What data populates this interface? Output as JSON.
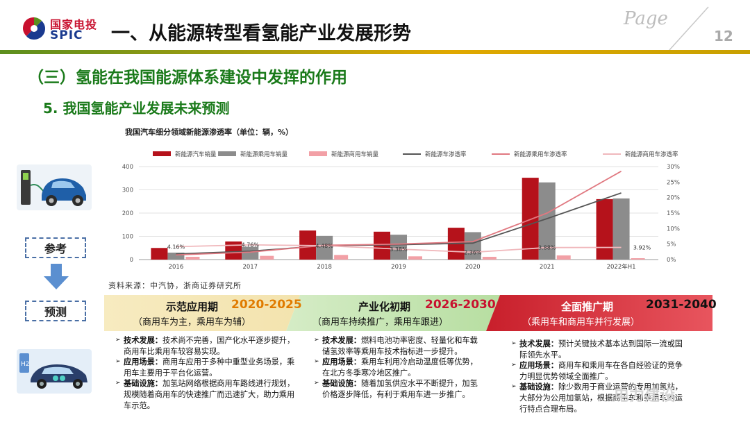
{
  "header": {
    "logo_cn": "国家电投",
    "logo_en": "SPIC",
    "title": "一、从能源转型看氢能产业发展形势",
    "page_label": "Page",
    "page_number": "12"
  },
  "section_title": "（三）氢能在我国能源体系建设中发挥的作用",
  "sub_title": "5. 我国氢能产业发展未来预测",
  "side": {
    "ref_label": "参考",
    "forecast_label": "预测"
  },
  "chart_data": {
    "type": "bar",
    "title": "我国汽车细分领域新能源渗透率（单位：辆，%）",
    "categories": [
      "2016",
      "2017",
      "2018",
      "2019",
      "2020",
      "2021",
      "2022年H1"
    ],
    "series": [
      {
        "name": "新能源汽车销量",
        "type": "bar",
        "color": "#b5121b",
        "values": [
          50,
          78,
          125,
          120,
          137,
          352,
          260
        ]
      },
      {
        "name": "新能源乘用车销量",
        "type": "bar",
        "color": "#8c8c8c",
        "values": [
          30,
          55,
          102,
          107,
          118,
          332,
          263
        ]
      },
      {
        "name": "新能源商用车销量",
        "type": "bar",
        "color": "#f2a0a6",
        "values": [
          12,
          16,
          20,
          14,
          12,
          18,
          6
        ]
      },
      {
        "name": "新能源车渗透率",
        "type": "line",
        "axis": "right",
        "color": "#555555",
        "values": [
          1.8,
          2.7,
          4.5,
          4.8,
          5.3,
          13.2,
          21.5
        ]
      },
      {
        "name": "新能源乘用车渗透率",
        "type": "line",
        "axis": "right",
        "color": "#e07880",
        "values": [
          1.5,
          2.4,
          4.6,
          5.0,
          5.8,
          15.0,
          28.5
        ]
      },
      {
        "name": "新能源商用车渗透率",
        "type": "line",
        "axis": "right",
        "color": "#f0b8bc",
        "values": [
          4.16,
          4.76,
          4.48,
          3.38,
          2.36,
          3.88,
          3.92
        ]
      }
    ],
    "point_labels": [
      "4.16%",
      "4.76%",
      "4.48%",
      "3.38%",
      "2.36%",
      "3.88%",
      "3.92%"
    ],
    "y_left_ticks": [
      "0",
      "100",
      "200",
      "300",
      "400"
    ],
    "y_right_ticks": [
      "0%",
      "5%",
      "10%",
      "15%",
      "20%",
      "25%",
      "30%"
    ],
    "ylim_left": [
      0,
      400
    ],
    "ylim_right": [
      0,
      30
    ],
    "legend_position": "top",
    "grid": true
  },
  "source_note": "资料来源：中汽协，浙商证券研究所",
  "phases": [
    {
      "title": "示范应用期",
      "years": "2020-2025",
      "subtitle": "（商用车为主，乘用车为辅）",
      "items": [
        {
          "key": "技术发展：",
          "text": "技术尚不完善，国产化水平逐步提升，商用车比乘用车较容易实现。"
        },
        {
          "key": "应用场景：",
          "text": "商用车应用于多种中重型业务场景，乘用车主要用于平台化运营。"
        },
        {
          "key": "基础设施：",
          "text": "加氢站网络根据商用车路线进行规划，规模随着商用车的快速推广而迅速扩大，助力乘用车示范。"
        }
      ]
    },
    {
      "title": "产业化初期",
      "years": "2026-2030",
      "subtitle": "（商用车持续推广，乘用车跟进）",
      "items": [
        {
          "key": "技术发展：",
          "text": "燃料电池功率密度、轻量化和车载储氢效率等乘用车技术指标进一步提升。"
        },
        {
          "key": "应用场景：",
          "text": "乘用车利用冷启动温度低等优势，在北方冬季寒冷地区推广。"
        },
        {
          "key": "基础设施：",
          "text": "随着加氢供应水平不断提升，加氢价格逐步降低，有利于乘用车进一步推广。"
        }
      ]
    },
    {
      "title": "全面推广期",
      "years": "2031-2040",
      "subtitle": "（乘用车和商用车并行发展）",
      "items": [
        {
          "key": "技术发展：",
          "text": "预计关键技术基本达到国际一流或国际领先水平。"
        },
        {
          "key": "应用场景：",
          "text": "商用车和乘用车在各自经验证的竞争力明显优势领域全面推广。"
        },
        {
          "key": "基础设施：",
          "text": "除少数用于商业运营的专用加氢站，大部分为公用加氢站，根据商用车和乘用车的运行特点合理布局。"
        }
      ]
    }
  ],
  "watermark": "电力建设"
}
